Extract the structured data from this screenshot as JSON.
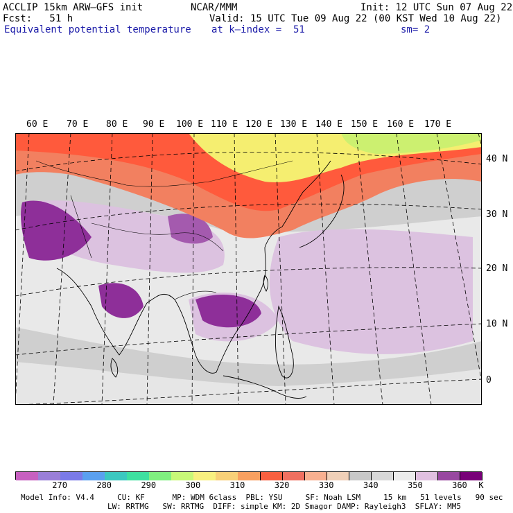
{
  "header": {
    "model_title": "ACCLIP 15km ARW–GFS init",
    "center": "NCAR/MMM",
    "init_text": "Init: 12 UTC Sun 07 Aug 22",
    "fcst_text": "Fcst:   51 h",
    "valid_text": "Valid: 15 UTC Tue 09 Aug 22 (00 KST Wed 10 Aug 22)",
    "field_name": "Equivalent potential temperature",
    "level_text": "at k–index =  51",
    "smooth_text": "sm= 2"
  },
  "map": {
    "lon_labels": [
      "60 E",
      "70 E",
      "80 E",
      "90 E",
      "100 E",
      "110 E",
      "120 E",
      "130 E",
      "140 E",
      "150 E",
      "160 E",
      "170 E"
    ],
    "lat_labels": [
      "40 N",
      "30 N",
      "20 N",
      "10 N",
      "0"
    ],
    "colors": {
      "ocean_base": "#cfcfcf",
      "tropics_light": "#dcc2e0",
      "tropics_dark": "#8e2f99",
      "warm_mid": "#f28060",
      "warm_high": "#ff5a3c",
      "yellow": "#f5ee70",
      "green": "#ccf070",
      "coast": "#000000",
      "grid": "#000000"
    }
  },
  "colorbar": {
    "colors": [
      "#c760c0",
      "#9a7fd8",
      "#7a7ae8",
      "#5aa0f0",
      "#3cc8c0",
      "#3ee0a0",
      "#80f080",
      "#c8f878",
      "#f8f080",
      "#f8d078",
      "#f8a060",
      "#f86040",
      "#f07060",
      "#f8b090",
      "#f0d0b8",
      "#c8c8c8",
      "#d8d8d8",
      "#ececec",
      "#e0c0e0",
      "#9848a0",
      "#780078"
    ],
    "labels": [
      "270",
      "280",
      "290",
      "300",
      "310",
      "320",
      "330",
      "340",
      "350",
      "360"
    ],
    "unit": "K"
  },
  "footer": {
    "line1": "Model Info: V4.4     CU: KF      MP: WDM 6class  PBL: YSU     SF: Noah LSM     15 km   51 levels   90 sec",
    "line2": "LW: RRTMG   SW: RRTMG  DIFF: simple KM: 2D Smagor DAMP: Rayleigh3  SFLAY: MM5"
  }
}
